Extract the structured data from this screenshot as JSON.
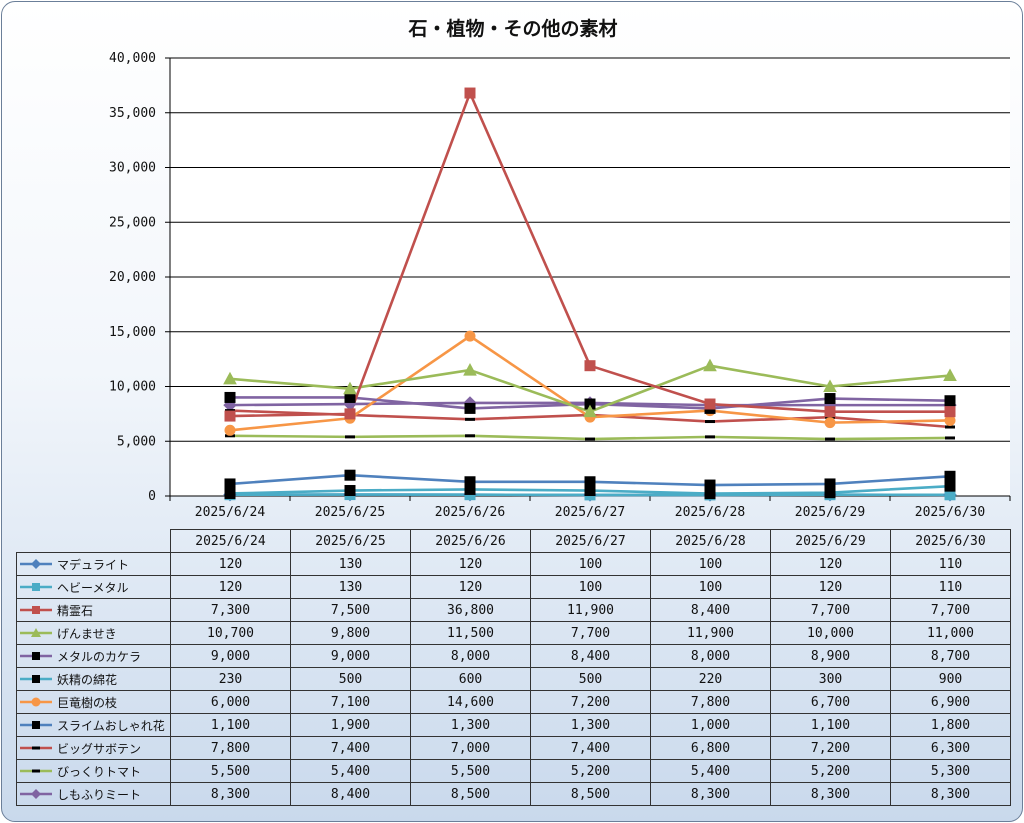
{
  "chart_data": {
    "type": "line",
    "title": "石・植物・その他の素材",
    "categories": [
      "2025/6/24",
      "2025/6/25",
      "2025/6/26",
      "2025/6/27",
      "2025/6/28",
      "2025/6/29",
      "2025/6/30"
    ],
    "ylim": [
      0,
      40000
    ],
    "yticks": [
      "0",
      "5,000",
      "10,000",
      "15,000",
      "20,000",
      "25,000",
      "30,000",
      "35,000",
      "40,000"
    ],
    "grid": true,
    "legend_placement": "data-table",
    "series": [
      {
        "name": "マデュライト",
        "color": "#4f81bd",
        "marker": "diamond",
        "values": [
          120,
          130,
          120,
          100,
          100,
          120,
          110
        ],
        "labels": [
          "120",
          "130",
          "120",
          "100",
          "100",
          "120",
          "110"
        ]
      },
      {
        "name": "ヘビーメタル",
        "color": "#4bacc6",
        "marker": "square",
        "values": [
          120,
          130,
          120,
          100,
          100,
          120,
          110
        ],
        "labels": [
          "120",
          "130",
          "120",
          "100",
          "100",
          "120",
          "110"
        ]
      },
      {
        "name": "精霊石",
        "color": "#c0504d",
        "marker": "square",
        "values": [
          7300,
          7500,
          36800,
          11900,
          8400,
          7700,
          7700
        ],
        "labels": [
          "7,300",
          "7,500",
          "36,800",
          "11,900",
          "8,400",
          "7,700",
          "7,700"
        ]
      },
      {
        "name": "げんませき",
        "color": "#9bbb59",
        "marker": "triangle",
        "values": [
          10700,
          9800,
          11500,
          7700,
          11900,
          10000,
          11000
        ],
        "labels": [
          "10,700",
          "9,800",
          "11,500",
          "7,700",
          "11,900",
          "10,000",
          "11,000"
        ]
      },
      {
        "name": "メタルのカケラ",
        "color": "#8064a2",
        "marker": "blacksquare",
        "values": [
          9000,
          9000,
          8000,
          8400,
          8000,
          8900,
          8700
        ],
        "labels": [
          "9,000",
          "9,000",
          "8,000",
          "8,400",
          "8,000",
          "8,900",
          "8,700"
        ]
      },
      {
        "name": "妖精の綿花",
        "color": "#4bacc6",
        "marker": "blacksquare",
        "values": [
          230,
          500,
          600,
          500,
          220,
          300,
          900
        ],
        "labels": [
          "230",
          "500",
          "600",
          "500",
          "220",
          "300",
          "900"
        ]
      },
      {
        "name": "巨竜樹の枝",
        "color": "#f79646",
        "marker": "circle",
        "values": [
          6000,
          7100,
          14600,
          7200,
          7800,
          6700,
          6900
        ],
        "labels": [
          "6,000",
          "7,100",
          "14,600",
          "7,200",
          "7,800",
          "6,700",
          "6,900"
        ]
      },
      {
        "name": "スライムおしゃれ花",
        "color": "#4f81bd",
        "marker": "blacksquare",
        "values": [
          1100,
          1900,
          1300,
          1300,
          1000,
          1100,
          1800
        ],
        "labels": [
          "1,100",
          "1,900",
          "1,300",
          "1,300",
          "1,000",
          "1,100",
          "1,800"
        ]
      },
      {
        "name": "ビッグサボテン",
        "color": "#c0504d",
        "marker": "dash",
        "values": [
          7800,
          7400,
          7000,
          7400,
          6800,
          7200,
          6300
        ],
        "labels": [
          "7,800",
          "7,400",
          "7,000",
          "7,400",
          "6,800",
          "7,200",
          "6,300"
        ]
      },
      {
        "name": "びっくりトマト",
        "color": "#9bbb59",
        "marker": "dash",
        "values": [
          5500,
          5400,
          5500,
          5200,
          5400,
          5200,
          5300
        ],
        "labels": [
          "5,500",
          "5,400",
          "5,500",
          "5,200",
          "5,400",
          "5,200",
          "5,300"
        ]
      },
      {
        "name": "しもふりミート",
        "color": "#8064a2",
        "marker": "diamond",
        "values": [
          8300,
          8400,
          8500,
          8500,
          8300,
          8300,
          8300
        ],
        "labels": [
          "8,300",
          "8,400",
          "8,500",
          "8,500",
          "8,300",
          "8,300",
          "8,300"
        ]
      }
    ]
  }
}
